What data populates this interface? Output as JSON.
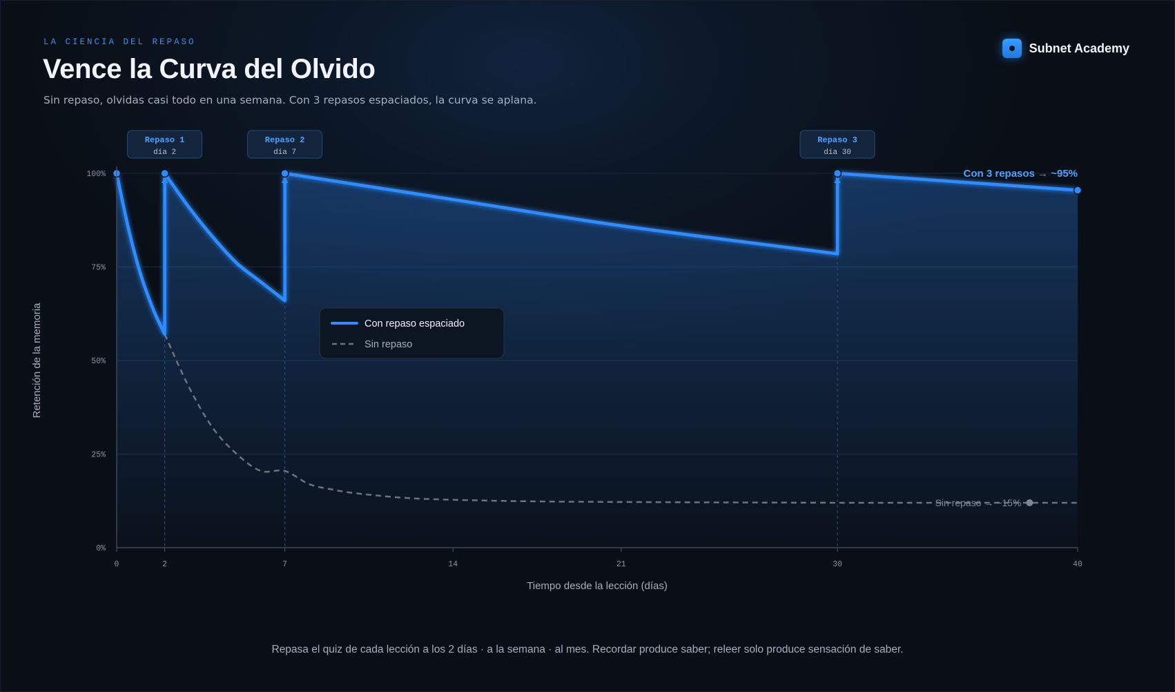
{
  "header": {
    "eyebrow": "LA CIENCIA DEL REPASO",
    "title": "Vence la Curva del Olvido",
    "subtitle": "Sin repaso, olvidas casi todo en una semana. Con 3 repasos espaciados, la curva se aplana."
  },
  "brand": {
    "name": "Subnet Academy",
    "icon": "logo-icon",
    "accent": "#2f8cff"
  },
  "footer": {
    "text": "Repasa el quiz de cada lección a los 2 días · a la semana · al mes. Recordar produce saber; releer solo produce sensación de saber."
  },
  "colors": {
    "accent": "#2f8cff",
    "no_review": "#6b7482",
    "background": "#0a0f17"
  },
  "chart_data": {
    "type": "line",
    "title": "",
    "xlabel": "Tiempo desde la lección (días)",
    "ylabel": "Retención de la memoria",
    "xlim": [
      0,
      40
    ],
    "ylim": [
      0,
      100
    ],
    "x_ticks": [
      0,
      2,
      7,
      14,
      21,
      30,
      40
    ],
    "y_ticks": [
      0,
      25,
      50,
      75,
      100
    ],
    "y_tick_labels": [
      "0%",
      "25%",
      "50%",
      "75%",
      "100%"
    ],
    "grid": true,
    "legend": "center-left",
    "series": [
      {
        "name": "Con repaso espaciado",
        "style": "solid",
        "color": "#2f8cff",
        "points": [
          [
            0,
            100
          ],
          [
            0.5,
            85
          ],
          [
            1,
            73
          ],
          [
            1.5,
            64
          ],
          [
            2,
            57
          ],
          [
            2,
            100
          ],
          [
            3,
            91
          ],
          [
            4,
            83
          ],
          [
            5,
            76
          ],
          [
            6,
            71
          ],
          [
            7,
            66
          ],
          [
            7,
            100
          ],
          [
            14,
            93
          ],
          [
            21,
            86
          ],
          [
            30,
            78.5
          ],
          [
            30,
            100
          ],
          [
            40,
            95.5
          ]
        ],
        "markers": [
          [
            0,
            100
          ],
          [
            2,
            100
          ],
          [
            7,
            100
          ],
          [
            30,
            100
          ],
          [
            40,
            95.5
          ]
        ]
      },
      {
        "name": "Sin repaso",
        "style": "dashed",
        "color": "#6b7482",
        "points": [
          [
            2,
            57
          ],
          [
            3,
            43
          ],
          [
            4,
            32
          ],
          [
            5,
            25
          ],
          [
            6,
            20.5
          ],
          [
            7,
            20.5
          ],
          [
            8,
            17
          ],
          [
            9,
            15.5
          ],
          [
            10,
            14.5
          ],
          [
            12,
            13.3
          ],
          [
            14,
            12.8
          ],
          [
            17,
            12.4
          ],
          [
            21,
            12.2
          ],
          [
            30,
            12
          ],
          [
            40,
            12
          ]
        ],
        "markers": [
          [
            38,
            12
          ]
        ]
      }
    ],
    "reviews": [
      {
        "label": "Repaso 1",
        "sub": "día 2",
        "x": 2
      },
      {
        "label": "Repaso 2",
        "sub": "día 7",
        "x": 7
      },
      {
        "label": "Repaso 3",
        "sub": "día 30",
        "x": 30
      }
    ],
    "annotations": {
      "with_review": "Con 3 repasos → ~95%",
      "no_review": "Sin repaso → ~15%"
    }
  }
}
